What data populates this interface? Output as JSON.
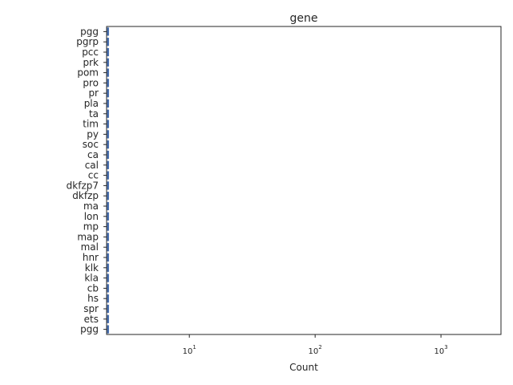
{
  "chart_data": {
    "type": "bar",
    "orientation": "horizontal",
    "title": "gene",
    "xlabel": "Count",
    "ylabel": "",
    "x_scale": "log",
    "xlim": [
      2.2,
      3000
    ],
    "x_ticks": [
      {
        "value": 10,
        "base": "10",
        "exp": "1"
      },
      {
        "value": 100,
        "base": "10",
        "exp": "2"
      },
      {
        "value": 1000,
        "base": "10",
        "exp": "3"
      }
    ],
    "categories": [
      "pgg",
      "ets",
      "spr",
      "hs",
      "cb",
      "kla",
      "klk",
      "hnr",
      "mal",
      "map",
      "mp",
      "lon",
      "ma",
      "dkfzp",
      "dkfzp7",
      "cc",
      "cal",
      "ca",
      "soc",
      "py",
      "tim",
      "ta",
      "pla",
      "pr",
      "pro",
      "pom",
      "prk",
      "pcc",
      "pgrp",
      "pgg"
    ],
    "values": [
      2.3,
      2.3,
      2.3,
      2.3,
      2.3,
      2.3,
      2.3,
      2.3,
      2.3,
      2.3,
      2.3,
      2.3,
      2.3,
      2.3,
      2.3,
      2.3,
      2.3,
      2.3,
      2.3,
      2.3,
      2.3,
      2.3,
      2.3,
      2.3,
      2.3,
      2.3,
      2.3,
      2.3,
      2.3,
      2.3
    ],
    "grid": false,
    "legend": "none",
    "colors": {
      "label": "#262626",
      "frame": "#262626"
    }
  }
}
